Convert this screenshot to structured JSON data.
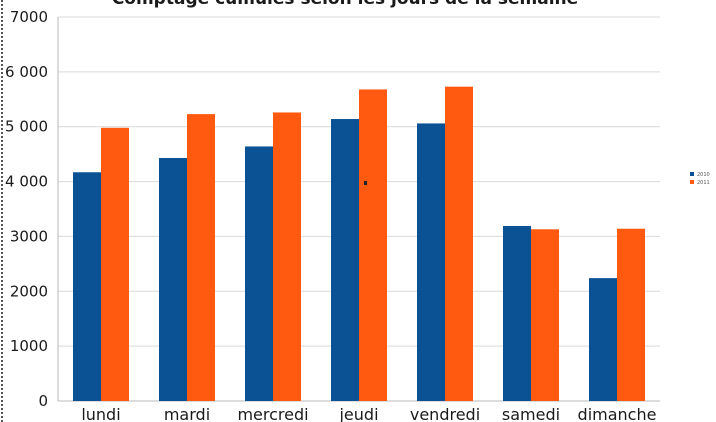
{
  "chart_data": {
    "type": "bar",
    "title": "Comptage cumulés selon les jours de la semaine",
    "categories": [
      "lundi",
      "mardi",
      "mercredi",
      "jeudi",
      "vendredi",
      "samedi",
      "dimanche"
    ],
    "series": [
      {
        "name": "2010",
        "color": "#0a5294",
        "values": [
          4170,
          4430,
          4640,
          5140,
          5060,
          3190,
          2240
        ]
      },
      {
        "name": "2011",
        "color": "#ff5a0f",
        "values": [
          4980,
          5230,
          5260,
          5680,
          5730,
          3130,
          3140
        ]
      }
    ],
    "ylim": [
      0,
      7000
    ],
    "y_ticks": [
      0,
      1000,
      2000,
      3000,
      4000,
      5000,
      6000,
      7000
    ],
    "y_tick_labels": [
      "0",
      "1000",
      "2000",
      "3000",
      "4 000",
      "5 000",
      "6 000",
      "7000"
    ],
    "grid": true,
    "legend_position": "right"
  }
}
